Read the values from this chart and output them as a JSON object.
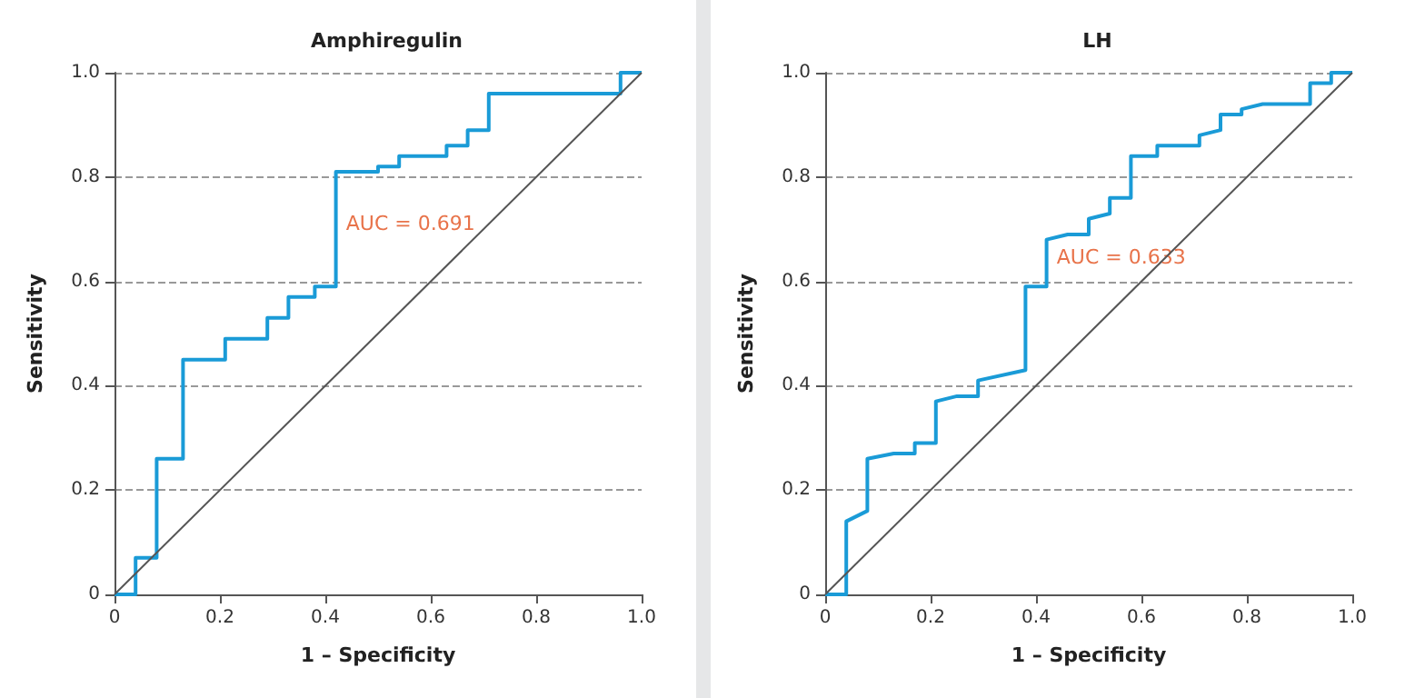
{
  "chart_data": [
    {
      "type": "line",
      "title": "Amphiregulin",
      "xlabel": "1 – Specificity",
      "ylabel": "Sensitivity",
      "xlim": [
        0,
        1
      ],
      "ylim": [
        0,
        1
      ],
      "xticks": [
        0,
        0.2,
        0.4,
        0.6,
        0.8,
        {
          "value": 1,
          "label": "1.0"
        }
      ],
      "yticks": [
        0,
        0.2,
        0.4,
        0.6,
        0.8,
        {
          "value": 1,
          "label": "1.0"
        }
      ],
      "grid": "y",
      "marker": "none",
      "line_style": "solid",
      "annotations": [
        "AUC = 0.691"
      ],
      "series": [
        {
          "color": "#1a9bd7",
          "x": [
            0,
            0.04,
            0.04,
            0.08,
            0.08,
            0.13,
            0.13,
            0.21,
            0.21,
            0.29,
            0.29,
            0.33,
            0.33,
            0.38,
            0.38,
            0.42,
            0.42,
            0.5,
            0.5,
            0.54,
            0.54,
            0.63,
            0.63,
            0.67,
            0.67,
            0.71,
            0.71,
            0.96,
            0.96,
            1
          ],
          "values": [
            0,
            0,
            0.07,
            0.07,
            0.26,
            0.26,
            0.45,
            0.45,
            0.49,
            0.49,
            0.53,
            0.53,
            0.57,
            0.57,
            0.59,
            0.59,
            0.81,
            0.81,
            0.82,
            0.82,
            0.84,
            0.84,
            0.86,
            0.86,
            0.89,
            0.89,
            0.96,
            0.96,
            1,
            1
          ]
        },
        {
          "color": "#555555",
          "x": [
            0,
            1
          ],
          "values": [
            0,
            1
          ]
        }
      ]
    },
    {
      "type": "line",
      "title": "LH",
      "xlabel": "1 – Specificity",
      "ylabel": "Sensitivity",
      "xlim": [
        0,
        1
      ],
      "ylim": [
        0,
        1
      ],
      "xticks": [
        0,
        0.2,
        0.4,
        0.6,
        0.8,
        {
          "value": 1,
          "label": "1.0"
        }
      ],
      "yticks": [
        0,
        0.2,
        0.4,
        0.6,
        0.8,
        {
          "value": 1,
          "label": "1.0"
        }
      ],
      "grid": "y",
      "marker": "none",
      "line_style": "solid",
      "annotations": [
        "AUC = 0.633"
      ],
      "series": [
        {
          "color": "#1a9bd7",
          "x": [
            0,
            0.04,
            0.04,
            0.08,
            0.08,
            0.13,
            0.17,
            0.17,
            0.21,
            0.21,
            0.25,
            0.29,
            0.29,
            0.38,
            0.38,
            0.42,
            0.42,
            0.46,
            0.5,
            0.5,
            0.54,
            0.54,
            0.58,
            0.58,
            0.63,
            0.63,
            0.71,
            0.71,
            0.75,
            0.75,
            0.79,
            0.79,
            0.83,
            0.92,
            0.92,
            0.96,
            0.96,
            1
          ],
          "values": [
            0,
            0,
            0.14,
            0.16,
            0.26,
            0.27,
            0.27,
            0.29,
            0.29,
            0.37,
            0.38,
            0.38,
            0.41,
            0.43,
            0.59,
            0.59,
            0.68,
            0.69,
            0.69,
            0.72,
            0.73,
            0.76,
            0.76,
            0.84,
            0.84,
            0.86,
            0.86,
            0.88,
            0.89,
            0.92,
            0.92,
            0.93,
            0.94,
            0.94,
            0.98,
            0.98,
            1,
            1
          ]
        },
        {
          "color": "#555555",
          "x": [
            0,
            1
          ],
          "values": [
            0,
            1
          ]
        }
      ]
    }
  ]
}
